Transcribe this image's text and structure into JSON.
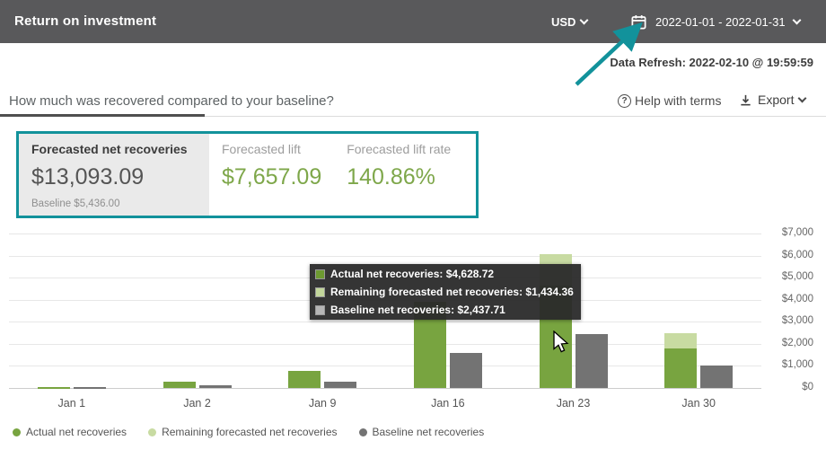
{
  "header": {
    "title": "Return on investment",
    "currency": "USD",
    "date_range": "2022-01-01 - 2022-01-31"
  },
  "meta": {
    "data_refresh": "Data Refresh: 2022-02-10 @ 19:59:59"
  },
  "tabs": {
    "active_label": "How much was recovered compared to your baseline?"
  },
  "actions": {
    "help_label": "Help with terms",
    "help_glyph": "?",
    "export_label": "Export"
  },
  "kpis": [
    {
      "title": "Forecasted net recoveries",
      "value": "$13,093.09",
      "subtitle": "Baseline $5,436.00",
      "selected": true
    },
    {
      "title": "Forecasted lift",
      "value": "$7,657.09",
      "selected": false
    },
    {
      "title": "Forecasted lift rate",
      "value": "140.86%",
      "selected": false
    }
  ],
  "tooltip": {
    "lines": [
      {
        "label": "Actual net recoveries",
        "value": "$4,628.72",
        "swatch": "#6d9a31"
      },
      {
        "label": "Remaining forecasted net recoveries",
        "value": "$1,434.36",
        "swatch": "#c2d69b"
      },
      {
        "label": "Baseline net recoveries",
        "value": "$2,437.71",
        "swatch": "#b5b5b5"
      }
    ]
  },
  "chart_data": {
    "type": "bar",
    "title": "",
    "categories": [
      "Jan 1",
      "Jan 2",
      "Jan 9",
      "Jan 16",
      "Jan 23",
      "Jan 30"
    ],
    "series": [
      {
        "name": "Actual net recoveries",
        "color": "#78a440",
        "stacked_with_next": true,
        "values": [
          50,
          300,
          770,
          3900,
          4628.72,
          1800
        ]
      },
      {
        "name": "Remaining forecasted net recoveries",
        "color": "#c8dba2",
        "stacked_on_previous": true,
        "values": [
          0,
          0,
          0,
          0,
          1434.36,
          700
        ]
      },
      {
        "name": "Baseline net recoveries",
        "color": "#737373",
        "stacked_on_previous": false,
        "values": [
          30,
          120,
          300,
          1600,
          2437.71,
          1000
        ]
      }
    ],
    "ylim": [
      0,
      7000
    ],
    "yticks": [
      {
        "v": 0,
        "label": "$0"
      },
      {
        "v": 1000,
        "label": "$1,000"
      },
      {
        "v": 2000,
        "label": "$2,000"
      },
      {
        "v": 3000,
        "label": "$3,000"
      },
      {
        "v": 4000,
        "label": "$4,000"
      },
      {
        "v": 5000,
        "label": "$5,000"
      },
      {
        "v": 6000,
        "label": "$6,000"
      },
      {
        "v": 7000,
        "label": "$7,000"
      }
    ],
    "grid": true,
    "legend_position": "bottom"
  },
  "colors": {
    "accent_teal": "#12929b",
    "header_bg": "#59595b",
    "kpi_green": "#7ea74a",
    "actual_green": "#78a440",
    "remaining_green": "#c8dba2",
    "baseline_gray": "#737373"
  }
}
